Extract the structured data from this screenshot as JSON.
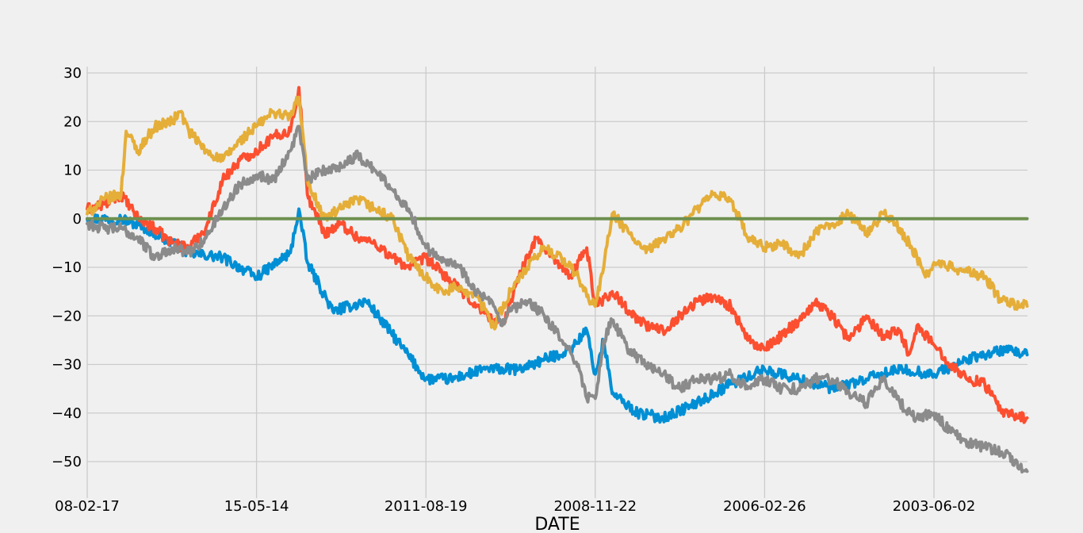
{
  "chart_data": {
    "type": "line",
    "title": "",
    "xlabel": "DATE",
    "ylabel": "",
    "x_tick_labels": [
      "08-02-17",
      "15-05-14",
      "2011-08-19",
      "2008-11-22",
      "2006-02-26",
      "2003-06-02"
    ],
    "x_tick_index": [
      0,
      1000,
      2000,
      3000,
      4000,
      5000
    ],
    "xlim": [
      0,
      5550
    ],
    "ylim": [
      -56,
      32
    ],
    "y_ticks": [
      30,
      20,
      10,
      0,
      -10,
      -20,
      -30,
      -40,
      -50
    ],
    "y_tick_labels": [
      "30",
      "20",
      "10",
      "0",
      "−10",
      "−20",
      "−30",
      "−40",
      "−50"
    ],
    "grid": true,
    "legend": "none",
    "colors": {
      "blue": "#008fd5",
      "red": "#fc4f30",
      "gold": "#e5ae38",
      "green": "#6d904f",
      "gray": "#8b8b8b",
      "background": "#f0f0f0",
      "grid": "#cbcbcb"
    },
    "series": [
      {
        "color": "#008fd5",
        "x": [
          0,
          200,
          350,
          500,
          600,
          800,
          1000,
          1200,
          1250,
          1300,
          1450,
          1650,
          1850,
          2000,
          2150,
          2350,
          2550,
          2700,
          2850,
          2950,
          3000,
          3050,
          3100,
          3250,
          3400,
          3600,
          3800,
          4000,
          4200,
          4400,
          4600,
          4800,
          5000,
          5200,
          5300,
          5400,
          5550
        ],
        "y": [
          0,
          0,
          -2,
          -5,
          -7,
          -8,
          -12,
          -7,
          2,
          -9,
          -19,
          -17,
          -26,
          -33,
          -33,
          -31,
          -31,
          -29,
          -27,
          -23,
          -32,
          -25,
          -36,
          -40,
          -41,
          -38,
          -34,
          -31,
          -33,
          -35,
          -33,
          -31,
          -32,
          -29,
          -28,
          -27,
          -28
        ]
      },
      {
        "color": "#fc4f30",
        "x": [
          0,
          100,
          200,
          300,
          400,
          500,
          600,
          700,
          800,
          900,
          1000,
          1100,
          1200,
          1250,
          1300,
          1400,
          1500,
          1600,
          1700,
          1800,
          1900,
          2000,
          2150,
          2300,
          2450,
          2550,
          2650,
          2750,
          2850,
          2950,
          3000,
          3100,
          3200,
          3300,
          3400,
          3500,
          3600,
          3700,
          3800,
          3900,
          4000,
          4100,
          4200,
          4300,
          4400,
          4500,
          4600,
          4700,
          4800,
          4850,
          4900,
          5000,
          5100,
          5200,
          5300,
          5400,
          5550
        ],
        "y": [
          2,
          3,
          5,
          0,
          -2,
          -5,
          -6,
          -2,
          8,
          12,
          14,
          17,
          18,
          27,
          5,
          -3,
          -1,
          -4,
          -5,
          -8,
          -10,
          -8,
          -13,
          -18,
          -22,
          -12,
          -4,
          -8,
          -12,
          -6,
          -18,
          -15,
          -19,
          -22,
          -23,
          -20,
          -17,
          -16,
          -18,
          -25,
          -27,
          -24,
          -21,
          -17,
          -20,
          -25,
          -20,
          -24,
          -23,
          -28,
          -22,
          -26,
          -30,
          -33,
          -34,
          -40,
          -41
        ]
      },
      {
        "color": "#e5ae38",
        "x": [
          0,
          100,
          200,
          230,
          300,
          400,
          500,
          550,
          600,
          700,
          800,
          900,
          1000,
          1100,
          1200,
          1250,
          1300,
          1400,
          1500,
          1600,
          1700,
          1800,
          1900,
          2000,
          2100,
          2200,
          2300,
          2400,
          2500,
          2600,
          2700,
          2800,
          2900,
          2950,
          3000,
          3050,
          3100,
          3200,
          3300,
          3400,
          3500,
          3600,
          3700,
          3800,
          3900,
          4000,
          4100,
          4200,
          4300,
          4400,
          4500,
          4600,
          4700,
          4800,
          4900,
          4950,
          5000,
          5100,
          5200,
          5300,
          5400,
          5550
        ],
        "y": [
          1,
          4,
          5,
          18,
          14,
          19,
          20,
          22,
          18,
          14,
          12,
          16,
          19,
          22,
          21,
          25,
          8,
          0,
          2,
          4,
          2,
          0,
          -8,
          -12,
          -15,
          -14,
          -16,
          -22,
          -15,
          -10,
          -6,
          -8,
          -12,
          -16,
          -18,
          -10,
          1,
          -3,
          -7,
          -4,
          -2,
          2,
          5,
          4,
          -4,
          -6,
          -5,
          -8,
          -3,
          -1,
          1,
          -3,
          1,
          -2,
          -8,
          -12,
          -9,
          -10,
          -11,
          -12,
          -17,
          -18
        ]
      },
      {
        "color": "#6d904f",
        "x": [
          0,
          5550
        ],
        "y": [
          0,
          0
        ]
      },
      {
        "color": "#8b8b8b",
        "x": [
          0,
          100,
          200,
          300,
          400,
          500,
          600,
          700,
          800,
          900,
          1000,
          1100,
          1200,
          1250,
          1300,
          1400,
          1500,
          1600,
          1700,
          1800,
          1900,
          2000,
          2100,
          2200,
          2300,
          2400,
          2450,
          2500,
          2600,
          2700,
          2800,
          2900,
          2950,
          3000,
          3050,
          3100,
          3200,
          3300,
          3400,
          3500,
          3600,
          3700,
          3800,
          3900,
          4000,
          4100,
          4200,
          4300,
          4400,
          4500,
          4600,
          4700,
          4800,
          4900,
          5000,
          5100,
          5200,
          5300,
          5400,
          5550
        ],
        "y": [
          -1,
          -2,
          -2,
          -4,
          -8,
          -6,
          -7,
          -4,
          2,
          7,
          9,
          8,
          14,
          19,
          8,
          10,
          11,
          13,
          10,
          6,
          2,
          -6,
          -8,
          -10,
          -15,
          -18,
          -22,
          -19,
          -17,
          -20,
          -25,
          -30,
          -37,
          -37,
          -25,
          -21,
          -27,
          -30,
          -32,
          -35,
          -33,
          -33,
          -32,
          -35,
          -33,
          -35,
          -35,
          -33,
          -33,
          -36,
          -38,
          -33,
          -38,
          -41,
          -40,
          -44,
          -46,
          -47,
          -48,
          -52
        ]
      }
    ]
  }
}
